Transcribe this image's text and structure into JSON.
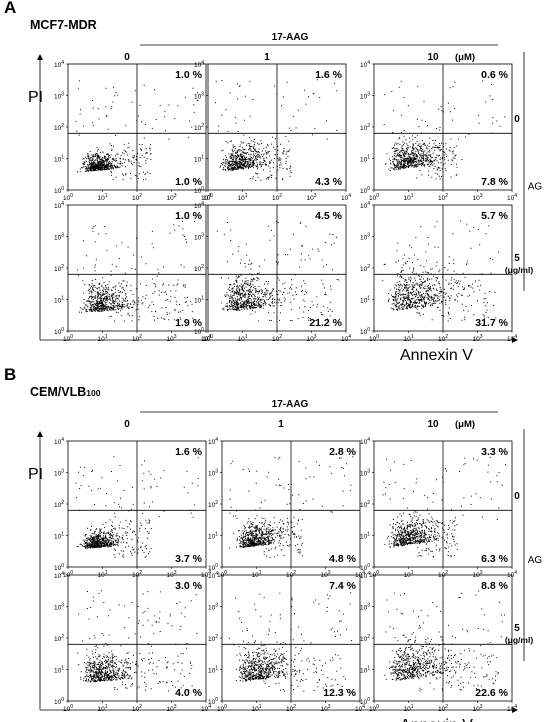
{
  "figure": {
    "panels": [
      {
        "letter": "A",
        "cell_line": "MCF7-MDR",
        "treatment_label": "17-AAG",
        "unit": "(μM)",
        "columns": [
          "0",
          "1",
          "10"
        ],
        "side_label": "AG",
        "rows": [
          "0",
          "5"
        ],
        "rows_unit": "(μg/ml)",
        "y_axis": "PI",
        "x_axis": "Annexin V",
        "tick_exponents": [
          "0",
          "1",
          "2",
          "3",
          "4"
        ],
        "plots": [
          [
            {
              "upper_right": "1.0 %",
              "lower_right": "1.0 %"
            },
            {
              "upper_right": "1.6 %",
              "lower_right": "4.3 %"
            },
            {
              "upper_right": "0.6 %",
              "lower_right": "7.8 %"
            }
          ],
          [
            {
              "upper_right": "1.0 %",
              "lower_right": "1.9 %"
            },
            {
              "upper_right": "4.5 %",
              "lower_right": "21.2 %"
            },
            {
              "upper_right": "5.7 %",
              "lower_right": "31.7 %"
            }
          ]
        ]
      },
      {
        "letter": "B",
        "cell_line": "CEM/VLB",
        "cell_line_sub": "100",
        "treatment_label": "17-AAG",
        "unit": "(μM)",
        "columns": [
          "0",
          "1",
          "10"
        ],
        "side_label": "AG",
        "rows": [
          "0",
          "5"
        ],
        "rows_unit": "(μg/ml)",
        "y_axis": "PI",
        "x_axis": "Annexin V",
        "tick_exponents": [
          "0",
          "1",
          "2",
          "3",
          "4"
        ],
        "plots": [
          [
            {
              "upper_right": "1.6 %",
              "lower_right": "3.7 %"
            },
            {
              "upper_right": "2.8 %",
              "lower_right": "4.8 %"
            },
            {
              "upper_right": "3.3 %",
              "lower_right": "6.3 %"
            }
          ],
          [
            {
              "upper_right": "3.0 %",
              "lower_right": "4.0 %"
            },
            {
              "upper_right": "7.4 %",
              "lower_right": "12.3 %"
            },
            {
              "upper_right": "8.8 %",
              "lower_right": "22.6 %"
            }
          ]
        ]
      }
    ]
  }
}
